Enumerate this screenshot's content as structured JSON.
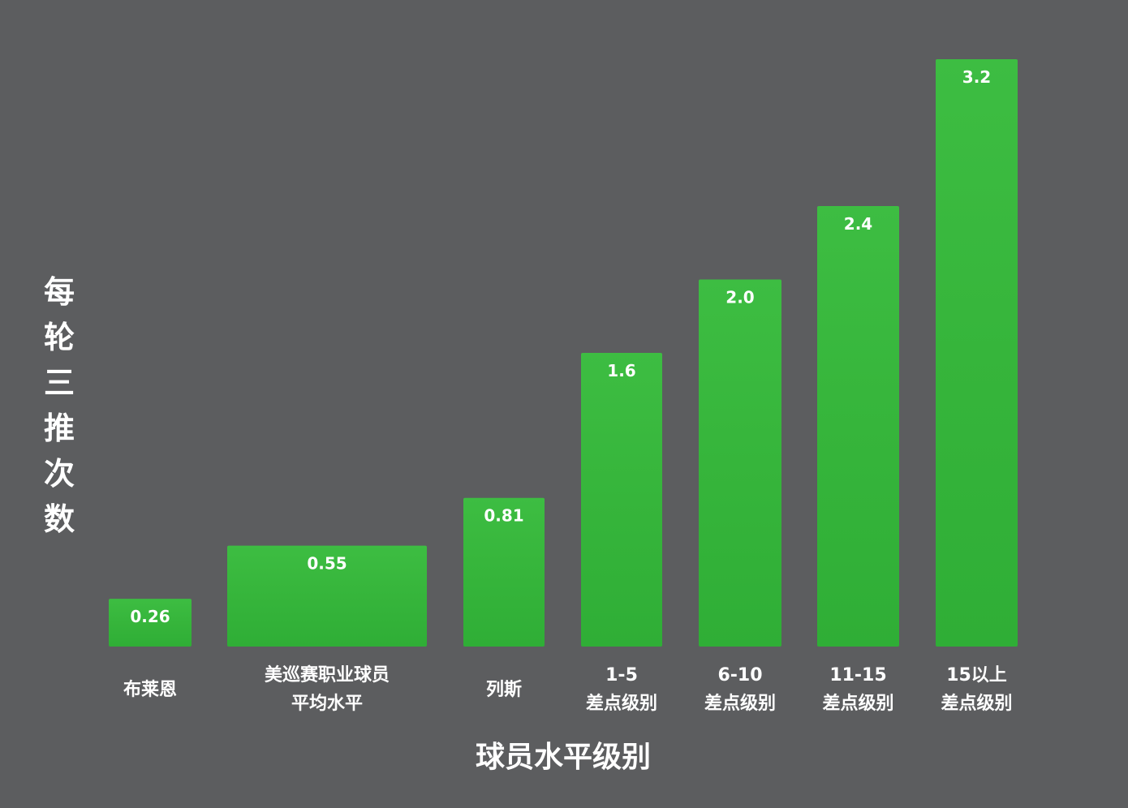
{
  "chart_data": {
    "type": "bar",
    "categories": [
      [
        "布莱恩"
      ],
      [
        "美巡赛职业球员",
        "平均水平"
      ],
      [
        "列斯"
      ],
      [
        "1-5",
        "差点级别"
      ],
      [
        "6-10",
        "差点级别"
      ],
      [
        "11-15",
        "差点级别"
      ],
      [
        "15以上",
        "差点级别"
      ]
    ],
    "values": [
      0.26,
      0.55,
      0.81,
      1.6,
      2.0,
      2.4,
      3.2
    ],
    "value_labels": [
      "0.26",
      "0.55",
      "0.81",
      "1.6",
      "2.0",
      "2.4",
      "3.2"
    ],
    "title": "",
    "xlabel": "球员水平级别",
    "ylabel": "每轮三推次数",
    "ylim": [
      0,
      3.2
    ],
    "grid": false,
    "legend": "none",
    "colors": {
      "background": "#5c5d5f",
      "bar": "#38b83f",
      "bar_highlight": "#45c94b",
      "text": "#ffffff"
    }
  }
}
